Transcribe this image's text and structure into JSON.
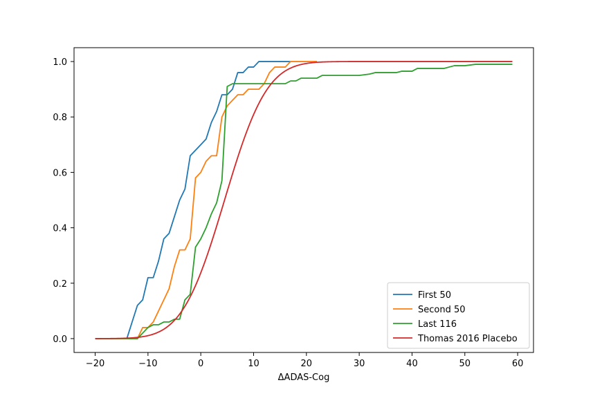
{
  "chart_data": {
    "type": "line",
    "title": "",
    "xlabel": "ΔADAS-Cog",
    "ylabel": "",
    "xlim": [
      -24,
      63
    ],
    "ylim": [
      -0.05,
      1.05
    ],
    "xticks": [
      -20,
      -10,
      0,
      10,
      20,
      30,
      40,
      50,
      60
    ],
    "yticks": [
      0.0,
      0.2,
      0.4,
      0.6,
      0.8,
      1.0
    ],
    "xtick_labels": [
      "−20",
      "−10",
      "0",
      "10",
      "20",
      "30",
      "40",
      "50",
      "60"
    ],
    "ytick_labels": [
      "0.0",
      "0.2",
      "0.4",
      "0.6",
      "0.8",
      "1.0"
    ],
    "grid": false,
    "legend_position": "bottom-right",
    "series": [
      {
        "name": "First 50",
        "color": "#1f77b4",
        "x": [
          -20,
          -14,
          -13,
          -12,
          -11,
          -10,
          -9,
          -8,
          -7,
          -6,
          -5,
          -4,
          -3,
          -2,
          -1,
          0,
          1,
          2,
          3,
          4,
          5,
          6,
          7,
          8,
          9,
          10,
          11,
          12,
          13,
          14,
          15,
          16,
          17
        ],
        "y": [
          0,
          0,
          0.06,
          0.12,
          0.14,
          0.22,
          0.22,
          0.28,
          0.36,
          0.38,
          0.44,
          0.5,
          0.54,
          0.66,
          0.68,
          0.7,
          0.72,
          0.78,
          0.82,
          0.88,
          0.88,
          0.9,
          0.96,
          0.96,
          0.98,
          0.98,
          1.0,
          1.0,
          1.0,
          1.0,
          1.0,
          1.0,
          1.0
        ]
      },
      {
        "name": "Second 50",
        "color": "#ff7f0e",
        "x": [
          -20,
          -12,
          -11,
          -10,
          -9,
          -8,
          -7,
          -6,
          -5,
          -4,
          -3,
          -2,
          -1,
          0,
          1,
          2,
          3,
          4,
          5,
          6,
          7,
          8,
          9,
          10,
          11,
          12,
          13,
          14,
          15,
          16,
          17,
          18,
          22
        ],
        "y": [
          0,
          0,
          0.04,
          0.04,
          0.06,
          0.1,
          0.14,
          0.18,
          0.26,
          0.32,
          0.32,
          0.36,
          0.58,
          0.6,
          0.64,
          0.66,
          0.66,
          0.8,
          0.84,
          0.86,
          0.88,
          0.88,
          0.9,
          0.9,
          0.9,
          0.92,
          0.96,
          0.98,
          0.98,
          0.98,
          1.0,
          1.0,
          1.0
        ]
      },
      {
        "name": "Last 116",
        "color": "#2ca02c",
        "x": [
          -20,
          -12,
          -11,
          -10,
          -9,
          -8,
          -7,
          -6,
          -5,
          -4,
          -3,
          -2,
          -1,
          0,
          1,
          2,
          3,
          4,
          5,
          6,
          7,
          8,
          9,
          10,
          11,
          12,
          13,
          14,
          15,
          16,
          17,
          18,
          19,
          20,
          21,
          22,
          23,
          25,
          27,
          28,
          30,
          32,
          33,
          35,
          37,
          38,
          40,
          41,
          43,
          45,
          46,
          47,
          48,
          49,
          50,
          52,
          55,
          58,
          59
        ],
        "y": [
          0,
          0,
          0.02,
          0.04,
          0.05,
          0.05,
          0.06,
          0.06,
          0.07,
          0.07,
          0.14,
          0.16,
          0.33,
          0.36,
          0.4,
          0.45,
          0.49,
          0.57,
          0.91,
          0.92,
          0.92,
          0.92,
          0.92,
          0.92,
          0.92,
          0.92,
          0.92,
          0.92,
          0.92,
          0.92,
          0.93,
          0.93,
          0.94,
          0.94,
          0.94,
          0.94,
          0.95,
          0.95,
          0.95,
          0.95,
          0.95,
          0.955,
          0.96,
          0.96,
          0.96,
          0.965,
          0.965,
          0.975,
          0.975,
          0.975,
          0.975,
          0.98,
          0.985,
          0.985,
          0.985,
          0.99,
          0.99,
          0.99,
          0.99
        ]
      },
      {
        "name": "Thomas 2016 Placebo",
        "color": "#d62728",
        "distribution": {
          "kind": "normal_cdf",
          "mean": 4.5,
          "sd": 6.3
        },
        "x_range": [
          -20,
          59
        ]
      }
    ]
  }
}
